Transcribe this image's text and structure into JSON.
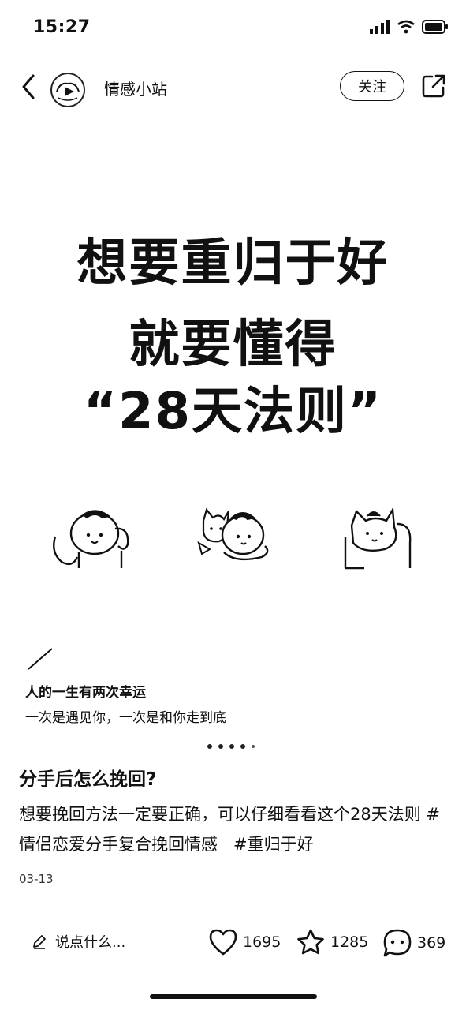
{
  "status": {
    "time": "15:27"
  },
  "header": {
    "author_name": "情感小站",
    "follow_label": "关注"
  },
  "cover": {
    "headline_line1": "想要重归于好",
    "headline_line2": "就要懂得",
    "headline_line3": "“28天法则”",
    "quote_line1": "人的一生有两次幸运",
    "quote_line2": "一次是遇见你，一次是和你走到底"
  },
  "carousel": {
    "count": 5,
    "active_index": 0
  },
  "post": {
    "title": "分手后怎么挽回?",
    "body_text": "想要挽回方法一定要正确，可以仔细看看这个28天法则",
    "tags": [
      "#情侣恋爱分手复合挽回情感",
      "#重归于好"
    ],
    "date": "03-13"
  },
  "bottom_bar": {
    "comment_placeholder": "说点什么...",
    "likes": "1695",
    "favorites": "1285",
    "comments": "369"
  },
  "icons": [
    "signal-icon",
    "wifi-icon",
    "battery-icon",
    "back-icon",
    "share-icon",
    "edit-icon",
    "heart-icon",
    "star-icon",
    "comment-icon"
  ]
}
